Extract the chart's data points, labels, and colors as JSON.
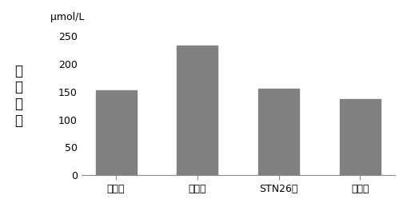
{
  "categories": [
    "对照组",
    "模型组",
    "STN26组",
    "药物组"
  ],
  "values": [
    152,
    233,
    156,
    137
  ],
  "bar_color": "#808080",
  "ylabel_text": "μmol/L",
  "ylabel_vertical": "血\n清\n尿\n酸",
  "ylim": [
    0,
    260
  ],
  "yticks": [
    0,
    50,
    100,
    150,
    200,
    250
  ],
  "bar_width": 0.5,
  "background_color": "#ffffff"
}
